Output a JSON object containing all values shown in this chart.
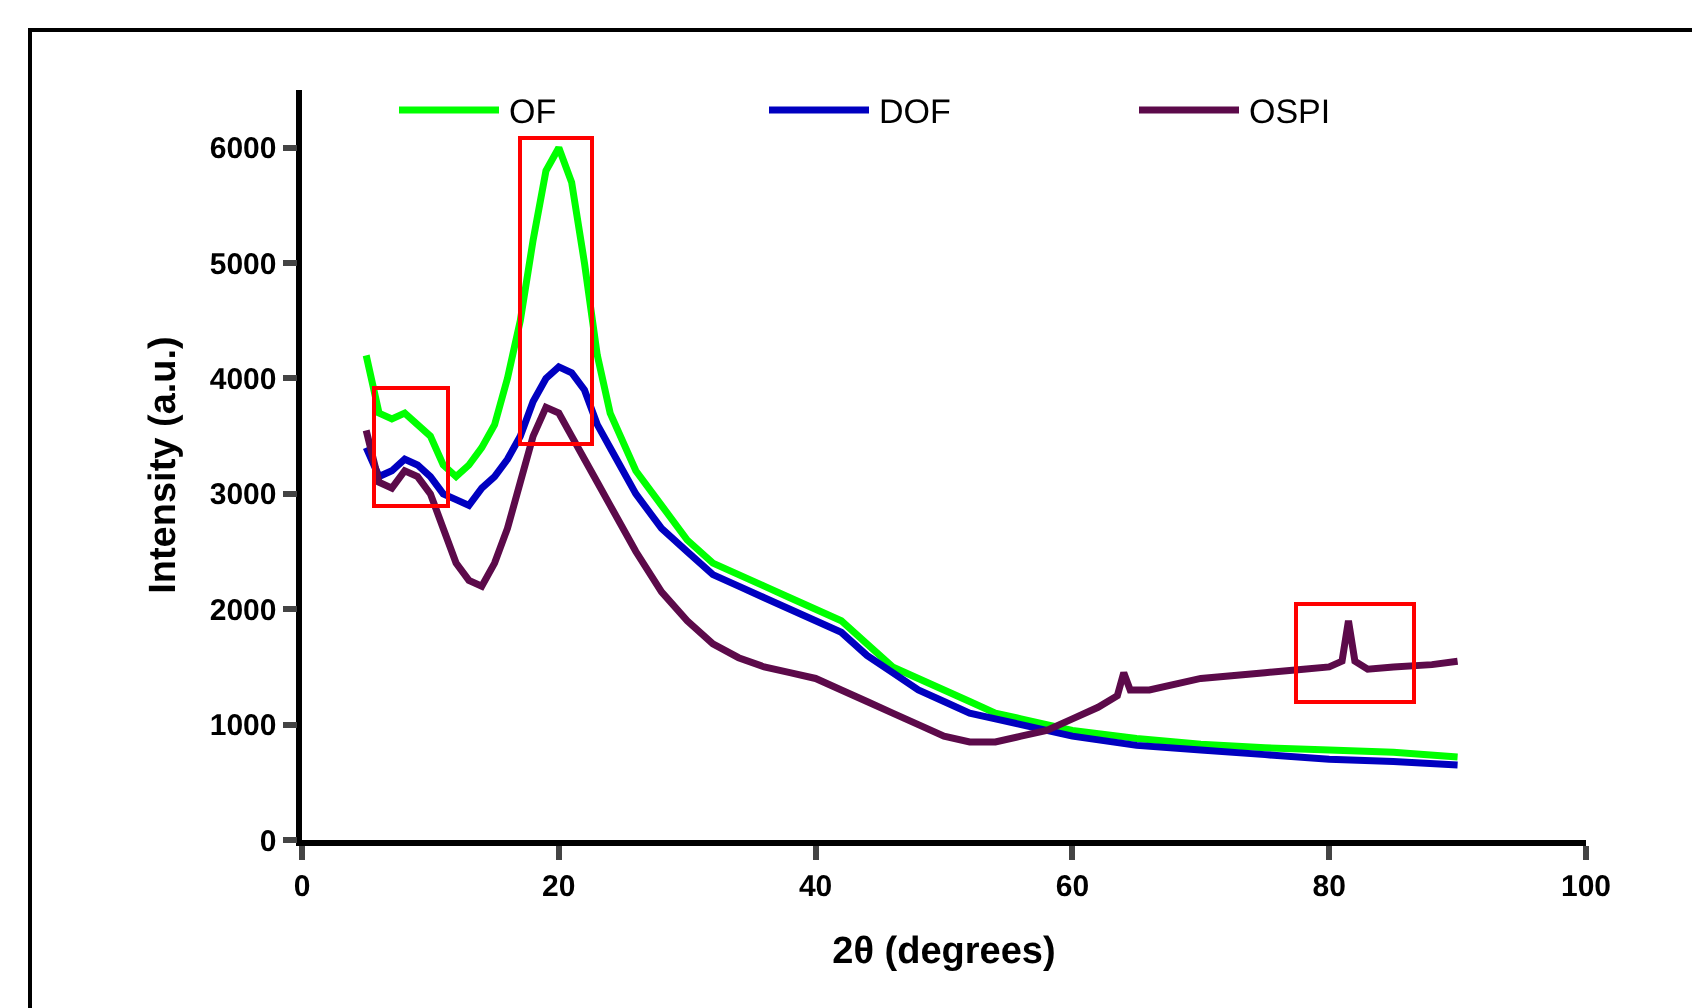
{
  "chart_data": {
    "type": "line",
    "xlabel": "2θ (degrees)",
    "ylabel": "Intensity (a.u.)",
    "xlim": [
      0,
      100
    ],
    "ylim": [
      0,
      6500
    ],
    "xticks": [
      0,
      20,
      40,
      60,
      80,
      100
    ],
    "yticks": [
      0,
      1000,
      2000,
      3000,
      4000,
      5000,
      6000
    ],
    "grid": false,
    "legend": "top",
    "marker": "none",
    "line_style": "solid",
    "x": [
      5,
      6,
      7,
      8,
      9,
      10,
      11,
      12,
      13,
      14,
      15,
      16,
      17,
      18,
      19,
      20,
      21,
      22,
      23,
      24,
      26,
      28,
      30,
      32,
      34,
      36,
      38,
      40,
      42,
      44,
      46,
      48,
      50,
      52,
      54,
      56,
      58,
      60,
      65,
      70,
      75,
      80,
      85,
      90
    ],
    "series": [
      {
        "name": "OF",
        "color": "#00ff00",
        "values": [
          4200,
          3700,
          3650,
          3700,
          3600,
          3500,
          3250,
          3150,
          3250,
          3400,
          3600,
          4000,
          4500,
          5200,
          5800,
          6000,
          5700,
          5000,
          4200,
          3700,
          3200,
          2900,
          2600,
          2400,
          2300,
          2200,
          2100,
          2000,
          1900,
          1700,
          1500,
          1400,
          1300,
          1200,
          1100,
          1050,
          1000,
          950,
          880,
          830,
          800,
          780,
          760,
          720
        ]
      },
      {
        "name": "DOF",
        "color": "#0000c0",
        "values": [
          3400,
          3150,
          3200,
          3300,
          3250,
          3150,
          3000,
          2950,
          2900,
          3050,
          3150,
          3300,
          3500,
          3800,
          4000,
          4100,
          4050,
          3900,
          3600,
          3400,
          3000,
          2700,
          2500,
          2300,
          2200,
          2100,
          2000,
          1900,
          1800,
          1600,
          1450,
          1300,
          1200,
          1100,
          1050,
          1000,
          950,
          900,
          820,
          780,
          740,
          700,
          680,
          650
        ]
      },
      {
        "name": "OSPI",
        "color": "#5c0a4a",
        "x": [
          5,
          6,
          7,
          8,
          9,
          10,
          11,
          12,
          13,
          14,
          15,
          16,
          17,
          18,
          19,
          20,
          21,
          22,
          23,
          24,
          26,
          28,
          30,
          32,
          34,
          36,
          38,
          40,
          42,
          44,
          46,
          48,
          50,
          52,
          54,
          56,
          58,
          60,
          62,
          63.5,
          64,
          64.5,
          66,
          70,
          75,
          78,
          80,
          81,
          81.5,
          82,
          83,
          85,
          88,
          90
        ],
        "values": [
          3550,
          3100,
          3050,
          3200,
          3150,
          3000,
          2700,
          2400,
          2250,
          2200,
          2400,
          2700,
          3100,
          3500,
          3750,
          3700,
          3500,
          3300,
          3100,
          2900,
          2500,
          2150,
          1900,
          1700,
          1580,
          1500,
          1450,
          1400,
          1300,
          1200,
          1100,
          1000,
          900,
          850,
          850,
          900,
          950,
          1050,
          1150,
          1250,
          1450,
          1300,
          1300,
          1400,
          1450,
          1480,
          1500,
          1550,
          1900,
          1550,
          1480,
          1500,
          1520,
          1550
        ]
      }
    ]
  }
}
